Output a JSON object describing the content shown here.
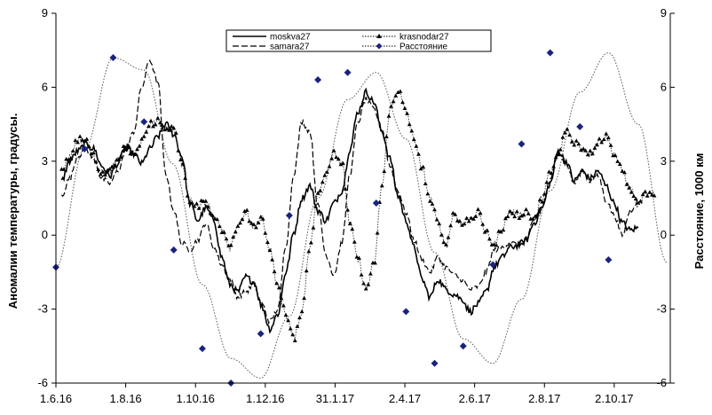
{
  "chart_data": {
    "type": "line",
    "title": "",
    "xlabel": "",
    "ylabel": "Аномалии температуры, градусы.",
    "y2label": "Расстояние, 1000 км",
    "xlim": [
      "2016-06-01",
      "2017-11-20"
    ],
    "x_ticks": [
      "1.6.16",
      "1.8.16",
      "1.10.16",
      "1.12.16",
      "31.1.17",
      "2.4.17",
      "2.6.17",
      "2.8.17",
      "2.10.17"
    ],
    "x_tick_dates": [
      "2016-06-01",
      "2016-08-01",
      "2016-10-01",
      "2016-12-01",
      "2017-01-31",
      "2017-04-02",
      "2017-06-02",
      "2017-08-02",
      "2017-10-02"
    ],
    "ylim": [
      -6,
      9
    ],
    "y_ticks": [
      "-6",
      "-3",
      "0",
      "3",
      "6",
      "9"
    ],
    "y2lim": [
      -6,
      9
    ],
    "y2_ticks": [
      "-6",
      "-3",
      "0",
      "3",
      "6",
      "9"
    ],
    "grid": false,
    "legend_position": "top-center",
    "series": [
      {
        "name": "moskva27",
        "axis": "y",
        "style": "solid",
        "color": "#000000",
        "points": [
          [
            "2016-06-06",
            2.2
          ],
          [
            "2016-06-13",
            3.0
          ],
          [
            "2016-06-20",
            3.4
          ],
          [
            "2016-06-27",
            3.7
          ],
          [
            "2016-07-04",
            3.5
          ],
          [
            "2016-07-11",
            2.8
          ],
          [
            "2016-07-18",
            2.4
          ],
          [
            "2016-07-25",
            2.9
          ],
          [
            "2016-08-01",
            3.6
          ],
          [
            "2016-08-08",
            3.3
          ],
          [
            "2016-08-15",
            2.9
          ],
          [
            "2016-08-22",
            3.5
          ],
          [
            "2016-08-29",
            4.0
          ],
          [
            "2016-09-05",
            4.5
          ],
          [
            "2016-09-12",
            4.1
          ],
          [
            "2016-09-19",
            3.2
          ],
          [
            "2016-09-26",
            1.3
          ],
          [
            "2016-10-03",
            0.6
          ],
          [
            "2016-10-10",
            1.1
          ],
          [
            "2016-10-17",
            0.6
          ],
          [
            "2016-10-24",
            -0.9
          ],
          [
            "2016-10-31",
            -2.0
          ],
          [
            "2016-11-07",
            -2.3
          ],
          [
            "2016-11-14",
            -1.7
          ],
          [
            "2016-11-21",
            -1.9
          ],
          [
            "2016-11-28",
            -2.9
          ],
          [
            "2016-12-05",
            -3.8
          ],
          [
            "2016-12-12",
            -3.2
          ],
          [
            "2016-12-19",
            -1.5
          ],
          [
            "2016-12-26",
            0.1
          ],
          [
            "2017-01-02",
            1.5
          ],
          [
            "2017-01-09",
            2.0
          ],
          [
            "2017-01-16",
            1.0
          ],
          [
            "2017-01-23",
            0.6
          ],
          [
            "2017-01-30",
            1.3
          ],
          [
            "2017-02-06",
            1.8
          ],
          [
            "2017-02-13",
            3.5
          ],
          [
            "2017-02-20",
            5.0
          ],
          [
            "2017-02-27",
            5.8
          ],
          [
            "2017-03-06",
            5.4
          ],
          [
            "2017-03-13",
            4.2
          ],
          [
            "2017-03-20",
            3.1
          ],
          [
            "2017-03-27",
            1.6
          ],
          [
            "2017-04-03",
            0.6
          ],
          [
            "2017-04-10",
            -0.5
          ],
          [
            "2017-04-17",
            -1.8
          ],
          [
            "2017-04-24",
            -2.5
          ],
          [
            "2017-05-01",
            -1.8
          ],
          [
            "2017-05-08",
            -2.2
          ],
          [
            "2017-05-15",
            -2.4
          ],
          [
            "2017-05-22",
            -2.6
          ],
          [
            "2017-05-29",
            -3.1
          ],
          [
            "2017-06-05",
            -2.8
          ],
          [
            "2017-06-12",
            -2.3
          ],
          [
            "2017-06-19",
            -1.3
          ],
          [
            "2017-06-26",
            -0.9
          ],
          [
            "2017-07-03",
            -0.5
          ],
          [
            "2017-07-10",
            -0.4
          ],
          [
            "2017-07-17",
            -0.2
          ],
          [
            "2017-07-24",
            0.5
          ],
          [
            "2017-07-31",
            1.1
          ],
          [
            "2017-08-07",
            2.1
          ],
          [
            "2017-08-14",
            3.4
          ],
          [
            "2017-08-21",
            3.0
          ],
          [
            "2017-08-28",
            2.2
          ],
          [
            "2017-09-04",
            2.6
          ],
          [
            "2017-09-11",
            2.3
          ],
          [
            "2017-09-18",
            2.6
          ],
          [
            "2017-09-25",
            2.0
          ],
          [
            "2017-10-02",
            1.3
          ],
          [
            "2017-10-09",
            0.5
          ],
          [
            "2017-10-16",
            0.2
          ],
          [
            "2017-10-23",
            0.3
          ]
        ]
      },
      {
        "name": "samara27",
        "axis": "y",
        "style": "dashed",
        "color": "#000000",
        "points": [
          [
            "2016-06-06",
            1.6
          ],
          [
            "2016-06-13",
            2.3
          ],
          [
            "2016-06-20",
            3.2
          ],
          [
            "2016-06-27",
            3.5
          ],
          [
            "2016-07-04",
            3.1
          ],
          [
            "2016-07-11",
            2.3
          ],
          [
            "2016-07-18",
            2.1
          ],
          [
            "2016-07-25",
            2.6
          ],
          [
            "2016-08-01",
            3.4
          ],
          [
            "2016-08-08",
            4.2
          ],
          [
            "2016-08-15",
            6.0
          ],
          [
            "2016-08-22",
            7.1
          ],
          [
            "2016-08-29",
            6.2
          ],
          [
            "2016-09-05",
            2.5
          ],
          [
            "2016-09-12",
            1.0
          ],
          [
            "2016-09-19",
            -0.3
          ],
          [
            "2016-09-26",
            -0.6
          ],
          [
            "2016-10-03",
            -0.2
          ],
          [
            "2016-10-10",
            0.5
          ],
          [
            "2016-10-17",
            -0.5
          ],
          [
            "2016-10-24",
            -1.2
          ],
          [
            "2016-10-31",
            -1.8
          ],
          [
            "2016-11-07",
            -2.5
          ],
          [
            "2016-11-14",
            -2.3
          ],
          [
            "2016-11-21",
            -2.0
          ],
          [
            "2016-11-28",
            -2.8
          ],
          [
            "2016-12-05",
            -3.5
          ],
          [
            "2016-12-12",
            -3.0
          ],
          [
            "2016-12-19",
            -0.4
          ],
          [
            "2016-12-26",
            2.5
          ],
          [
            "2017-01-02",
            4.6
          ],
          [
            "2017-01-09",
            4.2
          ],
          [
            "2017-01-16",
            1.2
          ],
          [
            "2017-01-23",
            -0.8
          ],
          [
            "2017-01-30",
            -1.6
          ],
          [
            "2017-02-06",
            -0.3
          ],
          [
            "2017-02-13",
            2.5
          ],
          [
            "2017-02-20",
            4.6
          ],
          [
            "2017-02-27",
            5.5
          ],
          [
            "2017-03-06",
            5.1
          ],
          [
            "2017-03-13",
            4.3
          ],
          [
            "2017-03-20",
            2.8
          ],
          [
            "2017-03-27",
            1.8
          ],
          [
            "2017-04-03",
            0.9
          ],
          [
            "2017-04-10",
            -0.2
          ],
          [
            "2017-04-17",
            -1.0
          ],
          [
            "2017-04-24",
            -1.5
          ],
          [
            "2017-05-01",
            -0.9
          ],
          [
            "2017-05-08",
            -1.3
          ],
          [
            "2017-05-15",
            -1.6
          ],
          [
            "2017-05-22",
            -1.8
          ],
          [
            "2017-05-29",
            -2.2
          ],
          [
            "2017-06-05",
            -2.1
          ],
          [
            "2017-06-12",
            -1.5
          ],
          [
            "2017-06-19",
            -0.6
          ],
          [
            "2017-06-26",
            -0.5
          ],
          [
            "2017-07-03",
            -0.3
          ],
          [
            "2017-07-10",
            -0.4
          ],
          [
            "2017-07-17",
            -0.2
          ],
          [
            "2017-07-24",
            0.6
          ],
          [
            "2017-07-31",
            1.2
          ],
          [
            "2017-08-07",
            2.2
          ],
          [
            "2017-08-14",
            3.4
          ],
          [
            "2017-08-21",
            2.9
          ],
          [
            "2017-08-28",
            2.1
          ],
          [
            "2017-09-04",
            2.6
          ],
          [
            "2017-09-11",
            2.2
          ],
          [
            "2017-09-18",
            2.4
          ],
          [
            "2017-09-25",
            1.4
          ],
          [
            "2017-10-02",
            0.8
          ],
          [
            "2017-10-09",
            0.0
          ],
          [
            "2017-10-16",
            1.0
          ],
          [
            "2017-10-23",
            1.4
          ]
        ]
      },
      {
        "name": "krasnodar27",
        "axis": "y",
        "style": "dotted-triangle",
        "color": "#000000",
        "points": [
          [
            "2016-06-06",
            2.6
          ],
          [
            "2016-06-13",
            3.2
          ],
          [
            "2016-06-20",
            3.9
          ],
          [
            "2016-06-27",
            3.8
          ],
          [
            "2016-07-04",
            3.2
          ],
          [
            "2016-07-11",
            2.5
          ],
          [
            "2016-07-18",
            2.6
          ],
          [
            "2016-07-25",
            3.0
          ],
          [
            "2016-08-01",
            3.6
          ],
          [
            "2016-08-08",
            3.2
          ],
          [
            "2016-08-15",
            3.8
          ],
          [
            "2016-08-22",
            4.5
          ],
          [
            "2016-08-29",
            4.6
          ],
          [
            "2016-09-05",
            4.4
          ],
          [
            "2016-09-12",
            4.3
          ],
          [
            "2016-09-19",
            2.9
          ],
          [
            "2016-09-26",
            1.4
          ],
          [
            "2016-10-03",
            1.2
          ],
          [
            "2016-10-10",
            1.4
          ],
          [
            "2016-10-17",
            0.8
          ],
          [
            "2016-10-24",
            0.2
          ],
          [
            "2016-10-31",
            -0.6
          ],
          [
            "2016-11-07",
            0.4
          ],
          [
            "2016-11-14",
            0.9
          ],
          [
            "2016-11-21",
            0.3
          ],
          [
            "2016-11-28",
            0.7
          ],
          [
            "2016-12-05",
            -0.6
          ],
          [
            "2016-12-12",
            -2.1
          ],
          [
            "2016-12-19",
            -3.2
          ],
          [
            "2016-12-26",
            -4.2
          ],
          [
            "2017-01-02",
            -3.1
          ],
          [
            "2017-01-09",
            -0.4
          ],
          [
            "2017-01-16",
            1.6
          ],
          [
            "2017-01-23",
            2.6
          ],
          [
            "2017-01-30",
            3.4
          ],
          [
            "2017-02-06",
            2.9
          ],
          [
            "2017-02-13",
            0.5
          ],
          [
            "2017-02-20",
            -1.0
          ],
          [
            "2017-02-27",
            -2.2
          ],
          [
            "2017-03-06",
            -1.2
          ],
          [
            "2017-03-13",
            2.0
          ],
          [
            "2017-03-20",
            5.1
          ],
          [
            "2017-03-27",
            5.9
          ],
          [
            "2017-04-03",
            5.0
          ],
          [
            "2017-04-10",
            3.9
          ],
          [
            "2017-04-17",
            2.7
          ],
          [
            "2017-04-24",
            1.5
          ],
          [
            "2017-05-01",
            0.5
          ],
          [
            "2017-05-08",
            -0.4
          ],
          [
            "2017-05-15",
            0.9
          ],
          [
            "2017-05-22",
            0.4
          ],
          [
            "2017-05-29",
            0.7
          ],
          [
            "2017-06-05",
            0.9
          ],
          [
            "2017-06-12",
            0.1
          ],
          [
            "2017-06-19",
            -0.4
          ],
          [
            "2017-06-26",
            0.3
          ],
          [
            "2017-07-03",
            1.0
          ],
          [
            "2017-07-10",
            0.8
          ],
          [
            "2017-07-17",
            1.0
          ],
          [
            "2017-07-24",
            0.6
          ],
          [
            "2017-07-31",
            1.5
          ],
          [
            "2017-08-07",
            2.5
          ],
          [
            "2017-08-14",
            3.2
          ],
          [
            "2017-08-21",
            4.3
          ],
          [
            "2017-08-28",
            3.8
          ],
          [
            "2017-09-04",
            3.5
          ],
          [
            "2017-09-11",
            3.3
          ],
          [
            "2017-09-18",
            3.8
          ],
          [
            "2017-09-25",
            4.0
          ],
          [
            "2017-10-02",
            3.3
          ],
          [
            "2017-10-09",
            2.6
          ],
          [
            "2017-10-16",
            1.9
          ],
          [
            "2017-10-23",
            1.2
          ],
          [
            "2017-10-30",
            1.7
          ],
          [
            "2017-11-06",
            1.6
          ]
        ]
      },
      {
        "name": "Расстояние",
        "axis": "y2",
        "style": "dotted-diamond",
        "color": "#000000",
        "marker_color": "#1a237e",
        "curve": [
          [
            "2016-06-01",
            -1.3
          ],
          [
            "2016-06-26",
            3.5
          ],
          [
            "2016-07-21",
            7.2
          ],
          [
            "2016-08-17",
            6.7
          ],
          [
            "2016-09-11",
            2.9
          ],
          [
            "2016-10-07",
            -2.0
          ],
          [
            "2016-11-01",
            -5.0
          ],
          [
            "2016-11-27",
            -5.8
          ],
          [
            "2016-12-22",
            -3.3
          ],
          [
            "2017-01-16",
            1.5
          ],
          [
            "2017-02-11",
            5.5
          ],
          [
            "2017-03-08",
            6.6
          ],
          [
            "2017-04-03",
            3.9
          ],
          [
            "2017-04-28",
            -0.7
          ],
          [
            "2017-05-23",
            -4.2
          ],
          [
            "2017-06-18",
            -5.2
          ],
          [
            "2017-07-13",
            -2.6
          ],
          [
            "2017-08-07",
            1.8
          ],
          [
            "2017-09-02",
            5.8
          ],
          [
            "2017-09-27",
            7.4
          ],
          [
            "2017-10-23",
            4.5
          ],
          [
            "2017-11-17",
            -1.1
          ]
        ],
        "markers": [
          [
            "2016-06-01",
            -1.3
          ],
          [
            "2016-06-26",
            3.5
          ],
          [
            "2016-07-21",
            7.2
          ],
          [
            "2016-08-17",
            4.6
          ],
          [
            "2016-09-12",
            -0.6
          ],
          [
            "2016-10-07",
            -4.6
          ],
          [
            "2016-11-01",
            -6.0
          ],
          [
            "2016-11-27",
            -4.0
          ],
          [
            "2016-12-22",
            0.8
          ],
          [
            "2017-01-16",
            6.3
          ],
          [
            "2017-02-11",
            6.6
          ],
          [
            "2017-03-08",
            1.3
          ],
          [
            "2017-04-03",
            -3.1
          ],
          [
            "2017-04-28",
            -5.2
          ],
          [
            "2017-05-23",
            -4.5
          ],
          [
            "2017-06-18",
            -1.2
          ],
          [
            "2017-07-13",
            3.7
          ],
          [
            "2017-08-07",
            7.4
          ],
          [
            "2017-09-02",
            4.4
          ],
          [
            "2017-09-27",
            -1.0
          ]
        ]
      }
    ]
  }
}
